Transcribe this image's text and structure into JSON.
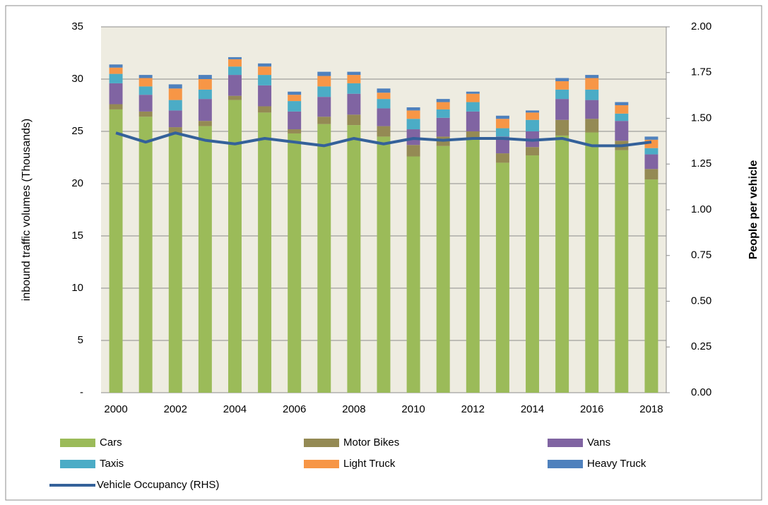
{
  "chart_data": {
    "type": "bar",
    "stacked": true,
    "categories": [
      "2000",
      null,
      "2002",
      null,
      "2004",
      null,
      "2006",
      null,
      "2008",
      null,
      "2010",
      null,
      "2012",
      null,
      "2014",
      null,
      "2016",
      null,
      "2018"
    ],
    "ylabel": "inbound traffic volumes (Thousands)",
    "y2label": "People per vehicle",
    "ylim": [
      0,
      35
    ],
    "yticks": [
      {
        "value": 0,
        "label": "-"
      },
      5,
      10,
      15,
      20,
      25,
      30,
      35
    ],
    "y2lim": [
      0,
      2
    ],
    "y2ticks": [
      {
        "value": 0,
        "label": "0.00"
      },
      {
        "value": 0.25,
        "label": "0.25"
      },
      {
        "value": 0.5,
        "label": "0.50"
      },
      {
        "value": 0.75,
        "label": "0.75"
      },
      {
        "value": 1,
        "label": "1.00"
      },
      {
        "value": 1.25,
        "label": "1.25"
      },
      {
        "value": 1.5,
        "label": "1.50"
      },
      {
        "value": 1.75,
        "label": "1.75"
      },
      {
        "value": 2,
        "label": "2.00"
      }
    ],
    "grid": true,
    "legend": "bottom",
    "series": [
      {
        "name": "Cars",
        "color": "#9bbb59",
        "values": [
          27.1,
          26.4,
          24.8,
          25.5,
          28.0,
          26.8,
          24.8,
          25.7,
          25.6,
          24.5,
          22.6,
          23.6,
          24.2,
          22.0,
          22.7,
          24.6,
          24.9,
          23.2,
          20.4
        ]
      },
      {
        "name": "Motor Bikes",
        "color": "#948a54",
        "values": [
          0.5,
          0.5,
          0.6,
          0.5,
          0.4,
          0.6,
          0.4,
          0.7,
          1.0,
          1.0,
          1.1,
          0.9,
          0.8,
          0.9,
          0.8,
          1.5,
          1.3,
          0.9,
          1.0
        ]
      },
      {
        "name": "Vans",
        "color": "#8064a2",
        "values": [
          2.0,
          1.6,
          1.6,
          2.1,
          2.0,
          2.0,
          1.7,
          1.9,
          2.0,
          1.7,
          1.5,
          1.8,
          1.9,
          1.6,
          1.5,
          2.0,
          1.8,
          1.9,
          1.4
        ]
      },
      {
        "name": "Taxis",
        "color": "#4bacc6",
        "values": [
          0.9,
          0.8,
          1.0,
          0.9,
          0.8,
          1.0,
          1.0,
          1.0,
          1.0,
          0.9,
          1.0,
          0.8,
          0.9,
          0.8,
          1.1,
          0.9,
          1.0,
          0.7,
          0.6
        ]
      },
      {
        "name": "Light Truck",
        "color": "#f79646",
        "values": [
          0.6,
          0.8,
          1.1,
          1.0,
          0.7,
          0.8,
          0.6,
          1.0,
          0.8,
          0.6,
          0.8,
          0.7,
          0.8,
          0.9,
          0.7,
          0.8,
          1.1,
          0.8,
          0.8
        ]
      },
      {
        "name": "Heavy Truck",
        "color": "#4f81bd",
        "values": [
          0.3,
          0.3,
          0.4,
          0.4,
          0.2,
          0.3,
          0.3,
          0.4,
          0.3,
          0.4,
          0.3,
          0.3,
          0.2,
          0.3,
          0.2,
          0.3,
          0.3,
          0.3,
          0.3
        ]
      },
      {
        "name": "Vehicle Occupancy (RHS)",
        "type": "line",
        "axis": "y2",
        "color": "#34619a",
        "values": [
          1.42,
          1.37,
          1.42,
          1.38,
          1.36,
          1.39,
          1.37,
          1.35,
          1.39,
          1.36,
          1.39,
          1.38,
          1.39,
          1.39,
          1.38,
          1.39,
          1.35,
          1.35,
          1.37
        ]
      }
    ]
  }
}
